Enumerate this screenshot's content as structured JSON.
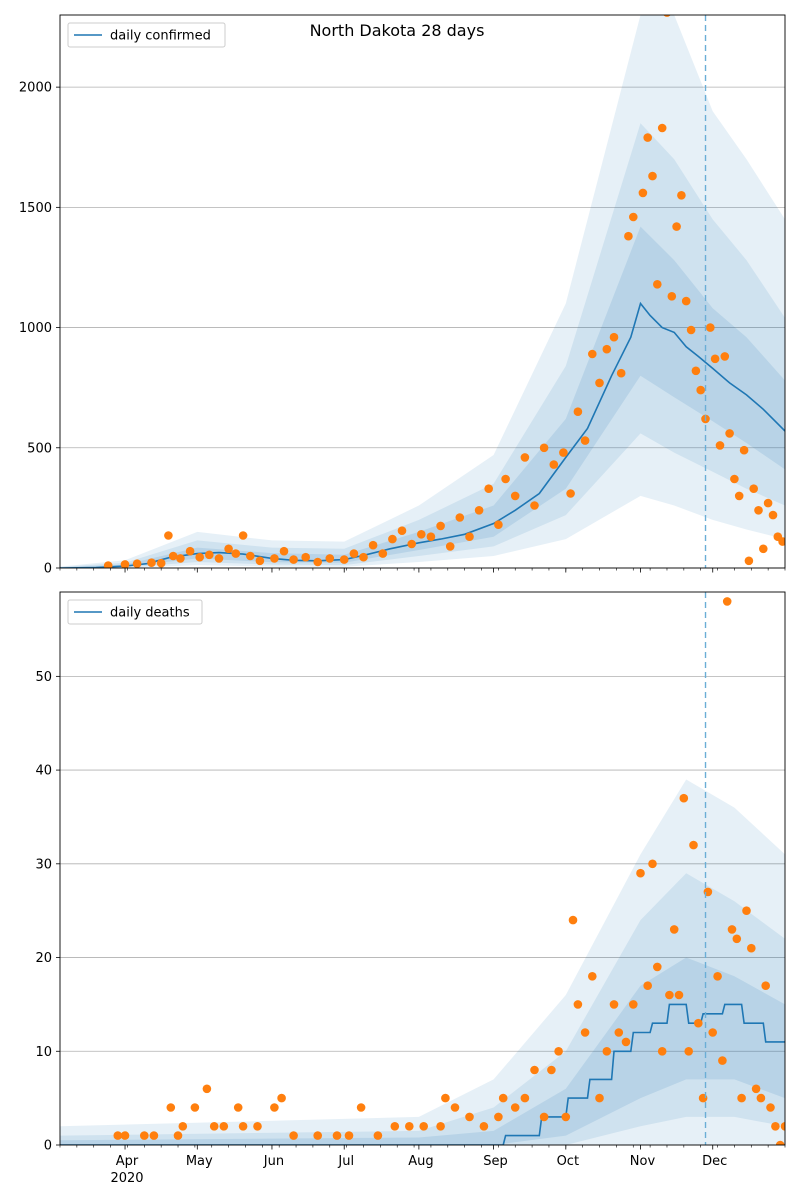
{
  "title": "North Dakota 28 days",
  "x_axis": {
    "ticks": [
      {
        "date": "2020-04-01",
        "label": "Apr"
      },
      {
        "date": "2020-05-01",
        "label": "May"
      },
      {
        "date": "2020-06-01",
        "label": "Jun"
      },
      {
        "date": "2020-07-01",
        "label": "Jul"
      },
      {
        "date": "2020-08-01",
        "label": "Aug"
      },
      {
        "date": "2020-09-01",
        "label": "Sep"
      },
      {
        "date": "2020-10-01",
        "label": "Oct"
      },
      {
        "date": "2020-11-01",
        "label": "Nov"
      },
      {
        "date": "2020-12-01",
        "label": "Dec"
      }
    ],
    "year_label": "2020",
    "range": [
      "2020-03-05",
      "2020-12-31"
    ]
  },
  "colors": {
    "line": "#1f77b4",
    "points": "#ff7f0e",
    "band": "#1f77b4",
    "grid": "#b0b0b0",
    "vline": "#6baed6"
  },
  "chart_data": [
    {
      "type": "line",
      "legend": "daily confirmed",
      "legend_position": "top-left",
      "ylim": [
        0,
        2300
      ],
      "yticks": [
        0,
        500,
        1000,
        1500,
        2000
      ],
      "grid": "y",
      "forecast_start": "2020-11-28",
      "line": [
        [
          "2020-03-05",
          0
        ],
        [
          "2020-03-20",
          2
        ],
        [
          "2020-04-01",
          8
        ],
        [
          "2020-04-10",
          18
        ],
        [
          "2020-04-20",
          45
        ],
        [
          "2020-05-01",
          60
        ],
        [
          "2020-05-10",
          64
        ],
        [
          "2020-05-20",
          58
        ],
        [
          "2020-06-01",
          40
        ],
        [
          "2020-06-10",
          32
        ],
        [
          "2020-06-20",
          30
        ],
        [
          "2020-07-01",
          35
        ],
        [
          "2020-07-10",
          55
        ],
        [
          "2020-07-20",
          80
        ],
        [
          "2020-08-01",
          105
        ],
        [
          "2020-08-10",
          120
        ],
        [
          "2020-08-20",
          140
        ],
        [
          "2020-09-01",
          185
        ],
        [
          "2020-09-10",
          240
        ],
        [
          "2020-09-20",
          310
        ],
        [
          "2020-10-01",
          460
        ],
        [
          "2020-10-10",
          580
        ],
        [
          "2020-10-20",
          800
        ],
        [
          "2020-10-28",
          960
        ],
        [
          "2020-11-01",
          1100
        ],
        [
          "2020-11-05",
          1050
        ],
        [
          "2020-11-10",
          1000
        ],
        [
          "2020-11-15",
          980
        ],
        [
          "2020-11-20",
          920
        ],
        [
          "2020-11-25",
          880
        ],
        [
          "2020-12-01",
          830
        ],
        [
          "2020-12-08",
          770
        ],
        [
          "2020-12-15",
          720
        ],
        [
          "2020-12-22",
          660
        ],
        [
          "2020-12-31",
          570
        ]
      ],
      "band_inner": [
        [
          "2020-03-05",
          0,
          2
        ],
        [
          "2020-04-01",
          5,
          14
        ],
        [
          "2020-05-01",
          40,
          85
        ],
        [
          "2020-06-01",
          24,
          62
        ],
        [
          "2020-07-01",
          22,
          55
        ],
        [
          "2020-08-01",
          75,
          150
        ],
        [
          "2020-09-01",
          130,
          260
        ],
        [
          "2020-10-01",
          330,
          620
        ],
        [
          "2020-11-01",
          800,
          1420
        ],
        [
          "2020-11-15",
          710,
          1280
        ],
        [
          "2020-12-01",
          610,
          1080
        ],
        [
          "2020-12-15",
          520,
          960
        ],
        [
          "2020-12-31",
          410,
          780
        ]
      ],
      "band_mid": [
        [
          "2020-03-05",
          0,
          4
        ],
        [
          "2020-04-01",
          2,
          22
        ],
        [
          "2020-05-01",
          25,
          115
        ],
        [
          "2020-06-01",
          14,
          85
        ],
        [
          "2020-07-01",
          12,
          80
        ],
        [
          "2020-08-01",
          50,
          200
        ],
        [
          "2020-09-01",
          90,
          350
        ],
        [
          "2020-10-01",
          220,
          840
        ],
        [
          "2020-11-01",
          560,
          1850
        ],
        [
          "2020-11-15",
          480,
          1700
        ],
        [
          "2020-12-01",
          400,
          1450
        ],
        [
          "2020-12-15",
          330,
          1280
        ],
        [
          "2020-12-31",
          260,
          1040
        ]
      ],
      "band_outer": [
        [
          "2020-03-05",
          0,
          6
        ],
        [
          "2020-04-01",
          0,
          32
        ],
        [
          "2020-05-01",
          12,
          150
        ],
        [
          "2020-06-01",
          6,
          115
        ],
        [
          "2020-07-01",
          5,
          110
        ],
        [
          "2020-08-01",
          25,
          260
        ],
        [
          "2020-09-01",
          50,
          470
        ],
        [
          "2020-10-01",
          120,
          1100
        ],
        [
          "2020-11-01",
          300,
          2300
        ],
        [
          "2020-11-15",
          260,
          2300
        ],
        [
          "2020-12-01",
          200,
          1900
        ],
        [
          "2020-12-15",
          160,
          1700
        ],
        [
          "2020-12-31",
          120,
          1450
        ]
      ],
      "points": [
        [
          "2020-03-25",
          10
        ],
        [
          "2020-04-01",
          15
        ],
        [
          "2020-04-06",
          18
        ],
        [
          "2020-04-12",
          22
        ],
        [
          "2020-04-16",
          20
        ],
        [
          "2020-04-19",
          135
        ],
        [
          "2020-04-21",
          50
        ],
        [
          "2020-04-24",
          40
        ],
        [
          "2020-04-28",
          70
        ],
        [
          "2020-05-02",
          45
        ],
        [
          "2020-05-06",
          55
        ],
        [
          "2020-05-10",
          40
        ],
        [
          "2020-05-14",
          80
        ],
        [
          "2020-05-17",
          60
        ],
        [
          "2020-05-20",
          135
        ],
        [
          "2020-05-23",
          50
        ],
        [
          "2020-05-27",
          30
        ],
        [
          "2020-06-02",
          40
        ],
        [
          "2020-06-06",
          70
        ],
        [
          "2020-06-10",
          35
        ],
        [
          "2020-06-15",
          45
        ],
        [
          "2020-06-20",
          25
        ],
        [
          "2020-06-25",
          40
        ],
        [
          "2020-07-01",
          35
        ],
        [
          "2020-07-05",
          60
        ],
        [
          "2020-07-09",
          45
        ],
        [
          "2020-07-13",
          95
        ],
        [
          "2020-07-17",
          60
        ],
        [
          "2020-07-21",
          120
        ],
        [
          "2020-07-25",
          155
        ],
        [
          "2020-07-29",
          100
        ],
        [
          "2020-08-02",
          140
        ],
        [
          "2020-08-06",
          130
        ],
        [
          "2020-08-10",
          175
        ],
        [
          "2020-08-14",
          90
        ],
        [
          "2020-08-18",
          210
        ],
        [
          "2020-08-22",
          130
        ],
        [
          "2020-08-26",
          240
        ],
        [
          "2020-08-30",
          330
        ],
        [
          "2020-09-03",
          180
        ],
        [
          "2020-09-06",
          370
        ],
        [
          "2020-09-10",
          300
        ],
        [
          "2020-09-14",
          460
        ],
        [
          "2020-09-18",
          260
        ],
        [
          "2020-09-22",
          500
        ],
        [
          "2020-09-26",
          430
        ],
        [
          "2020-09-30",
          480
        ],
        [
          "2020-10-03",
          310
        ],
        [
          "2020-10-06",
          650
        ],
        [
          "2020-10-09",
          530
        ],
        [
          "2020-10-12",
          890
        ],
        [
          "2020-10-15",
          770
        ],
        [
          "2020-10-18",
          910
        ],
        [
          "2020-10-21",
          960
        ],
        [
          "2020-10-24",
          810
        ],
        [
          "2020-10-27",
          1380
        ],
        [
          "2020-10-29",
          1460
        ],
        [
          "2020-11-02",
          1560
        ],
        [
          "2020-11-04",
          1790
        ],
        [
          "2020-11-06",
          1630
        ],
        [
          "2020-11-08",
          1180
        ],
        [
          "2020-11-10",
          1830
        ],
        [
          "2020-11-12",
          2310
        ],
        [
          "2020-11-14",
          1130
        ],
        [
          "2020-11-16",
          1420
        ],
        [
          "2020-11-18",
          1550
        ],
        [
          "2020-11-20",
          1110
        ],
        [
          "2020-11-22",
          990
        ],
        [
          "2020-11-24",
          820
        ],
        [
          "2020-11-26",
          740
        ],
        [
          "2020-11-28",
          620
        ],
        [
          "2020-11-30",
          1000
        ],
        [
          "2020-12-02",
          870
        ],
        [
          "2020-12-04",
          510
        ],
        [
          "2020-12-06",
          880
        ],
        [
          "2020-12-08",
          560
        ],
        [
          "2020-12-10",
          370
        ],
        [
          "2020-12-12",
          300
        ],
        [
          "2020-12-14",
          490
        ],
        [
          "2020-12-16",
          30
        ],
        [
          "2020-12-18",
          330
        ],
        [
          "2020-12-20",
          240
        ],
        [
          "2020-12-22",
          80
        ],
        [
          "2020-12-24",
          270
        ],
        [
          "2020-12-26",
          220
        ],
        [
          "2020-12-28",
          130
        ],
        [
          "2020-12-30",
          110
        ]
      ]
    },
    {
      "type": "line",
      "legend": "daily deaths",
      "legend_position": "top-left",
      "ylim": [
        0,
        59
      ],
      "yticks": [
        0,
        10,
        20,
        30,
        40,
        50
      ],
      "grid": "y",
      "forecast_start": "2020-11-28",
      "line": [
        [
          "2020-03-05",
          0
        ],
        [
          "2020-09-05",
          0
        ],
        [
          "2020-09-06",
          1
        ],
        [
          "2020-09-20",
          1
        ],
        [
          "2020-09-21",
          3
        ],
        [
          "2020-10-01",
          3
        ],
        [
          "2020-10-02",
          5
        ],
        [
          "2020-10-10",
          5
        ],
        [
          "2020-10-11",
          7
        ],
        [
          "2020-10-20",
          7
        ],
        [
          "2020-10-21",
          10
        ],
        [
          "2020-10-28",
          10
        ],
        [
          "2020-10-29",
          12
        ],
        [
          "2020-11-05",
          12
        ],
        [
          "2020-11-06",
          13
        ],
        [
          "2020-11-12",
          13
        ],
        [
          "2020-11-13",
          15
        ],
        [
          "2020-11-20",
          15
        ],
        [
          "2020-11-21",
          13
        ],
        [
          "2020-11-26",
          13
        ],
        [
          "2020-11-27",
          14
        ],
        [
          "2020-12-05",
          14
        ],
        [
          "2020-12-06",
          15
        ],
        [
          "2020-12-13",
          15
        ],
        [
          "2020-12-14",
          13
        ],
        [
          "2020-12-22",
          13
        ],
        [
          "2020-12-23",
          11
        ],
        [
          "2020-12-31",
          11
        ]
      ],
      "band_inner": [
        [
          "2020-03-05",
          0,
          0.5
        ],
        [
          "2020-08-01",
          0,
          0.8
        ],
        [
          "2020-09-01",
          0,
          1.5
        ],
        [
          "2020-10-01",
          1,
          6
        ],
        [
          "2020-11-01",
          5,
          17
        ],
        [
          "2020-11-20",
          7,
          20
        ],
        [
          "2020-12-10",
          7,
          18
        ],
        [
          "2020-12-31",
          5,
          15
        ]
      ],
      "band_mid": [
        [
          "2020-03-05",
          0,
          1
        ],
        [
          "2020-08-01",
          0,
          1.5
        ],
        [
          "2020-09-01",
          0,
          4
        ],
        [
          "2020-10-01",
          0,
          10
        ],
        [
          "2020-11-01",
          2,
          24
        ],
        [
          "2020-11-20",
          3,
          29
        ],
        [
          "2020-12-10",
          3,
          26
        ],
        [
          "2020-12-31",
          2,
          22
        ]
      ],
      "band_outer": [
        [
          "2020-03-05",
          0,
          2
        ],
        [
          "2020-08-01",
          0,
          3
        ],
        [
          "2020-09-01",
          0,
          7
        ],
        [
          "2020-10-01",
          0,
          16
        ],
        [
          "2020-11-01",
          0,
          31
        ],
        [
          "2020-11-20",
          0,
          39
        ],
        [
          "2020-12-10",
          0,
          36
        ],
        [
          "2020-12-31",
          0,
          31
        ]
      ],
      "points": [
        [
          "2020-03-29",
          1
        ],
        [
          "2020-04-01",
          1
        ],
        [
          "2020-04-09",
          1
        ],
        [
          "2020-04-13",
          1
        ],
        [
          "2020-04-20",
          4
        ],
        [
          "2020-04-23",
          1
        ],
        [
          "2020-04-25",
          2
        ],
        [
          "2020-04-30",
          4
        ],
        [
          "2020-05-05",
          6
        ],
        [
          "2020-05-08",
          2
        ],
        [
          "2020-05-12",
          2
        ],
        [
          "2020-05-18",
          4
        ],
        [
          "2020-05-20",
          2
        ],
        [
          "2020-05-26",
          2
        ],
        [
          "2020-06-02",
          4
        ],
        [
          "2020-06-05",
          5
        ],
        [
          "2020-06-10",
          1
        ],
        [
          "2020-06-20",
          1
        ],
        [
          "2020-06-28",
          1
        ],
        [
          "2020-07-03",
          1
        ],
        [
          "2020-07-08",
          4
        ],
        [
          "2020-07-15",
          1
        ],
        [
          "2020-07-22",
          2
        ],
        [
          "2020-07-28",
          2
        ],
        [
          "2020-08-03",
          2
        ],
        [
          "2020-08-10",
          2
        ],
        [
          "2020-08-12",
          5
        ],
        [
          "2020-08-16",
          4
        ],
        [
          "2020-08-22",
          3
        ],
        [
          "2020-08-28",
          2
        ],
        [
          "2020-09-03",
          3
        ],
        [
          "2020-09-05",
          5
        ],
        [
          "2020-09-10",
          4
        ],
        [
          "2020-09-14",
          5
        ],
        [
          "2020-09-18",
          8
        ],
        [
          "2020-09-22",
          3
        ],
        [
          "2020-09-25",
          8
        ],
        [
          "2020-09-28",
          10
        ],
        [
          "2020-10-01",
          3
        ],
        [
          "2020-10-04",
          24
        ],
        [
          "2020-10-06",
          15
        ],
        [
          "2020-10-09",
          12
        ],
        [
          "2020-10-12",
          18
        ],
        [
          "2020-10-15",
          5
        ],
        [
          "2020-10-18",
          10
        ],
        [
          "2020-10-21",
          15
        ],
        [
          "2020-10-23",
          12
        ],
        [
          "2020-10-26",
          11
        ],
        [
          "2020-10-29",
          15
        ],
        [
          "2020-11-01",
          29
        ],
        [
          "2020-11-04",
          17
        ],
        [
          "2020-11-06",
          30
        ],
        [
          "2020-11-08",
          19
        ],
        [
          "2020-11-10",
          10
        ],
        [
          "2020-11-13",
          16
        ],
        [
          "2020-11-15",
          23
        ],
        [
          "2020-11-17",
          16
        ],
        [
          "2020-11-19",
          37
        ],
        [
          "2020-11-21",
          10
        ],
        [
          "2020-11-23",
          32
        ],
        [
          "2020-11-25",
          13
        ],
        [
          "2020-11-27",
          5
        ],
        [
          "2020-11-29",
          27
        ],
        [
          "2020-12-01",
          12
        ],
        [
          "2020-12-03",
          18
        ],
        [
          "2020-12-05",
          9
        ],
        [
          "2020-12-07",
          58
        ],
        [
          "2020-12-09",
          23
        ],
        [
          "2020-12-11",
          22
        ],
        [
          "2020-12-13",
          5
        ],
        [
          "2020-12-15",
          25
        ],
        [
          "2020-12-17",
          21
        ],
        [
          "2020-12-19",
          6
        ],
        [
          "2020-12-21",
          5
        ],
        [
          "2020-12-23",
          17
        ],
        [
          "2020-12-25",
          4
        ],
        [
          "2020-12-27",
          2
        ],
        [
          "2020-12-29",
          0
        ],
        [
          "2020-12-31",
          2
        ]
      ]
    }
  ]
}
